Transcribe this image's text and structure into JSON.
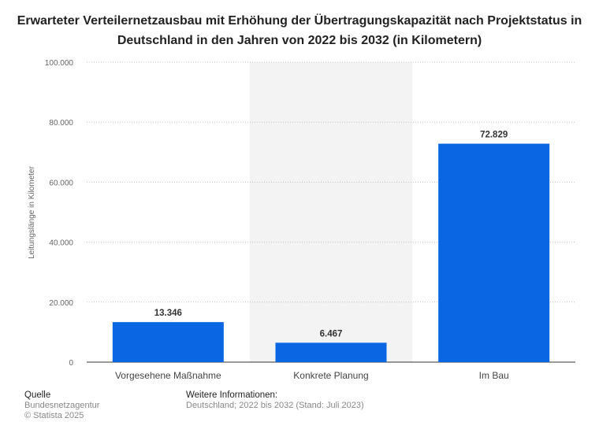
{
  "chart_data": {
    "type": "bar",
    "title": "Erwarteter Verteilernetzausbau mit Erhöhung der Übertragungskapazität nach Projektstatus in Deutschland in den Jahren von 2022 bis 2032 (in Kilometern)",
    "ylabel": "Leitungslänge in Kilometer",
    "categories": [
      "Vorgesehene Maßnahme",
      "Konkrete Planung",
      "Im Bau"
    ],
    "values": [
      13346,
      6467,
      72829
    ],
    "value_labels": [
      "13.346",
      "6.467",
      "72.829"
    ],
    "ylim": [
      0,
      100000
    ],
    "yticks": [
      0,
      20000,
      40000,
      60000,
      80000,
      100000
    ],
    "ytick_labels": [
      "0",
      "20.000",
      "40.000",
      "60.000",
      "80.000",
      "100.000"
    ],
    "grid": true,
    "bar_color": "#0b66e4",
    "highlight_band_color": "#f3f3f3"
  },
  "footer": {
    "source_heading": "Quelle",
    "source_lines": [
      "Bundesnetzagentur",
      "© Statista 2025"
    ],
    "info_heading": "Weitere Informationen:",
    "info_lines": [
      "Deutschland; 2022 bis 2032 (Stand: Juli 2023)"
    ]
  }
}
